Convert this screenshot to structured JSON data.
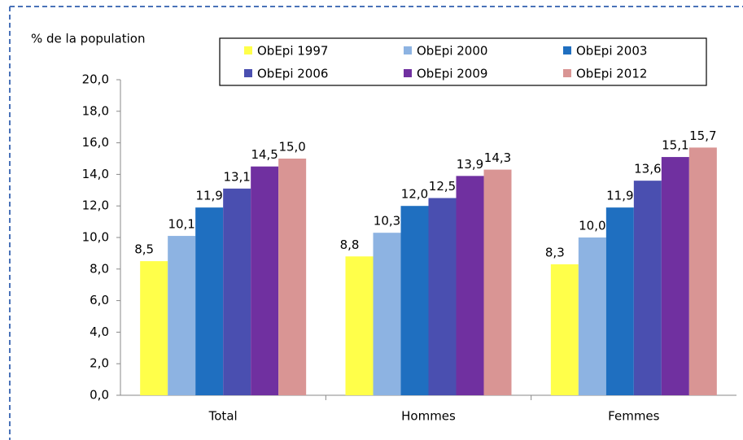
{
  "chart_data": {
    "type": "bar",
    "y_label": "% de la population",
    "categories": [
      "Total",
      "Hommes",
      "Femmes"
    ],
    "series": [
      {
        "name": "ObEpi 1997",
        "color": "#ffff4a",
        "values": [
          8.5,
          8.8,
          8.3
        ],
        "value_labels": [
          "8,5",
          "8,8",
          "8,3"
        ]
      },
      {
        "name": "ObEpi 2000",
        "color": "#8db3e2",
        "values": [
          10.1,
          10.3,
          10.0
        ],
        "value_labels": [
          "10,1",
          "10,3",
          "10,0"
        ]
      },
      {
        "name": "ObEpi 2003",
        "color": "#1f6fc0",
        "values": [
          11.9,
          12.0,
          11.9
        ],
        "value_labels": [
          "11,9",
          "12,0",
          "11,9"
        ]
      },
      {
        "name": "ObEpi 2006",
        "color": "#4a4fb0",
        "values": [
          13.1,
          12.5,
          13.6
        ],
        "value_labels": [
          "13,1",
          "12,5",
          "13,6"
        ]
      },
      {
        "name": "ObEpi 2009",
        "color": "#7030a0",
        "values": [
          14.5,
          13.9,
          15.1
        ],
        "value_labels": [
          "14,5",
          "13,9",
          "15,1"
        ]
      },
      {
        "name": "ObEpi 2012",
        "color": "#d99594",
        "values": [
          15.0,
          14.3,
          15.7
        ],
        "value_labels": [
          "15,0",
          "14,3",
          "15,7"
        ]
      }
    ],
    "ylim": [
      0,
      20
    ],
    "yticks": [
      {
        "value": 0,
        "label": "0,0"
      },
      {
        "value": 2,
        "label": "2,0"
      },
      {
        "value": 4,
        "label": "4,0"
      },
      {
        "value": 6,
        "label": "6,0"
      },
      {
        "value": 8,
        "label": "8,0"
      },
      {
        "value": 10,
        "label": "10,0"
      },
      {
        "value": 12,
        "label": "12,0"
      },
      {
        "value": 14,
        "label": "14,0"
      },
      {
        "value": 16,
        "label": "16,0"
      },
      {
        "value": 18,
        "label": "18,0"
      },
      {
        "value": 20,
        "label": "20,0"
      }
    ],
    "legend": "top"
  }
}
